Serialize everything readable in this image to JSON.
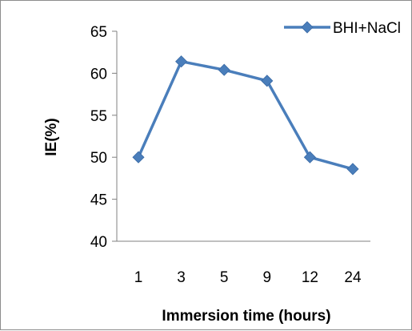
{
  "chart_data": {
    "type": "line",
    "title": "",
    "xlabel": "Immersion time (hours)",
    "ylabel": "IE(%)",
    "categories": [
      "1",
      "3",
      "5",
      "9",
      "12",
      "24"
    ],
    "series": [
      {
        "name": "BHI+NaCl",
        "values": [
          50.0,
          61.4,
          60.4,
          59.1,
          50.0,
          48.6
        ],
        "color": "#4a7ebb",
        "marker": "diamond"
      }
    ],
    "ylim": [
      40,
      65
    ],
    "yticks": [
      "40",
      "45",
      "50",
      "55",
      "60",
      "65"
    ],
    "grid": false,
    "legend_position": "top-right"
  }
}
